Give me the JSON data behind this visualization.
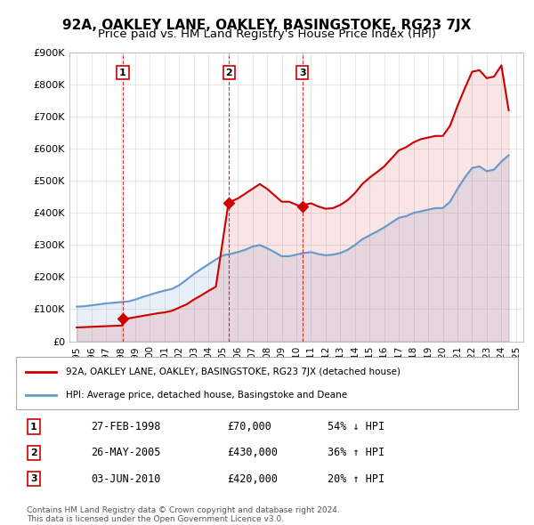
{
  "title": "92A, OAKLEY LANE, OAKLEY, BASINGSTOKE, RG23 7JX",
  "subtitle": "Price paid vs. HM Land Registry's House Price Index (HPI)",
  "legend_property": "92A, OAKLEY LANE, OAKLEY, BASINGSTOKE, RG23 7JX (detached house)",
  "legend_hpi": "HPI: Average price, detached house, Basingstoke and Deane",
  "footnote1": "Contains HM Land Registry data © Crown copyright and database right 2024.",
  "footnote2": "This data is licensed under the Open Government Licence v3.0.",
  "transactions": [
    {
      "label": "1",
      "date": "27-FEB-1998",
      "price": 70000,
      "hpi_rel": "54% ↓ HPI",
      "year": 1998.15
    },
    {
      "label": "2",
      "date": "26-MAY-2005",
      "price": 430000,
      "hpi_rel": "36% ↑ HPI",
      "year": 2005.4
    },
    {
      "label": "3",
      "date": "03-JUN-2010",
      "price": 420000,
      "hpi_rel": "20% ↑ HPI",
      "year": 2010.42
    }
  ],
  "property_color": "#cc0000",
  "hpi_color": "#6699cc",
  "vline_color": "#cc0000",
  "grid_color": "#dddddd",
  "background_color": "#ffffff",
  "ylim": [
    0,
    900000
  ],
  "xlim": [
    1994.5,
    2025.5
  ],
  "yticks": [
    0,
    100000,
    200000,
    300000,
    400000,
    500000,
    600000,
    700000,
    800000,
    900000
  ],
  "ytick_labels": [
    "£0",
    "£100K",
    "£200K",
    "£300K",
    "£400K",
    "£500K",
    "£600K",
    "£700K",
    "£800K",
    "£900K"
  ],
  "hpi_years": [
    1995,
    1995.5,
    1996,
    1996.5,
    1997,
    1997.5,
    1998,
    1998.5,
    1999,
    1999.5,
    2000,
    2000.5,
    2001,
    2001.5,
    2002,
    2002.5,
    2003,
    2003.5,
    2004,
    2004.5,
    2005,
    2005.5,
    2006,
    2006.5,
    2007,
    2007.5,
    2008,
    2008.5,
    2009,
    2009.5,
    2010,
    2010.5,
    2011,
    2011.5,
    2012,
    2012.5,
    2013,
    2013.5,
    2014,
    2014.5,
    2015,
    2015.5,
    2016,
    2016.5,
    2017,
    2017.5,
    2018,
    2018.5,
    2019,
    2019.5,
    2020,
    2020.5,
    2021,
    2021.5,
    2022,
    2022.5,
    2023,
    2023.5,
    2024,
    2024.5
  ],
  "hpi_values": [
    108000,
    109000,
    112000,
    115000,
    118000,
    120000,
    122000,
    124000,
    130000,
    138000,
    145000,
    152000,
    158000,
    163000,
    175000,
    192000,
    210000,
    225000,
    240000,
    255000,
    268000,
    272000,
    278000,
    285000,
    295000,
    300000,
    290000,
    278000,
    265000,
    265000,
    270000,
    275000,
    278000,
    272000,
    268000,
    270000,
    275000,
    285000,
    300000,
    318000,
    330000,
    342000,
    355000,
    370000,
    385000,
    390000,
    400000,
    405000,
    410000,
    415000,
    415000,
    435000,
    475000,
    510000,
    540000,
    545000,
    530000,
    535000,
    560000,
    580000
  ],
  "property_years": [
    1995,
    1995.5,
    1996,
    1996.5,
    1997,
    1997.5,
    1998.1,
    1998.15,
    1998.5,
    1999,
    1999.5,
    2000,
    2000.5,
    2001,
    2001.5,
    2002,
    2002.5,
    2003,
    2003.5,
    2004,
    2004.5,
    2005.35,
    2005.4,
    2005.5,
    2006,
    2006.5,
    2007,
    2007.5,
    2008,
    2008.5,
    2009,
    2009.5,
    2010.4,
    2010.42,
    2010.5,
    2011,
    2011.5,
    2012,
    2012.5,
    2013,
    2013.5,
    2014,
    2014.5,
    2015,
    2015.5,
    2016,
    2016.5,
    2017,
    2017.5,
    2018,
    2018.5,
    2019,
    2019.5,
    2020,
    2020.5,
    2021,
    2021.5,
    2022,
    2022.5,
    2023,
    2023.5,
    2024,
    2024.5
  ],
  "property_values": [
    43000,
    44000,
    45000,
    46000,
    47000,
    48000,
    49000,
    70000,
    71000,
    75000,
    79000,
    83000,
    87000,
    90000,
    95000,
    105000,
    115000,
    130000,
    143000,
    157000,
    170000,
    428000,
    430000,
    435000,
    445000,
    460000,
    475000,
    490000,
    475000,
    455000,
    435000,
    435000,
    418000,
    420000,
    425000,
    430000,
    420000,
    413000,
    415000,
    425000,
    440000,
    462000,
    490000,
    510000,
    527000,
    545000,
    570000,
    595000,
    605000,
    620000,
    630000,
    635000,
    640000,
    640000,
    672000,
    733000,
    788000,
    840000,
    845000,
    820000,
    825000,
    860000,
    720000
  ]
}
